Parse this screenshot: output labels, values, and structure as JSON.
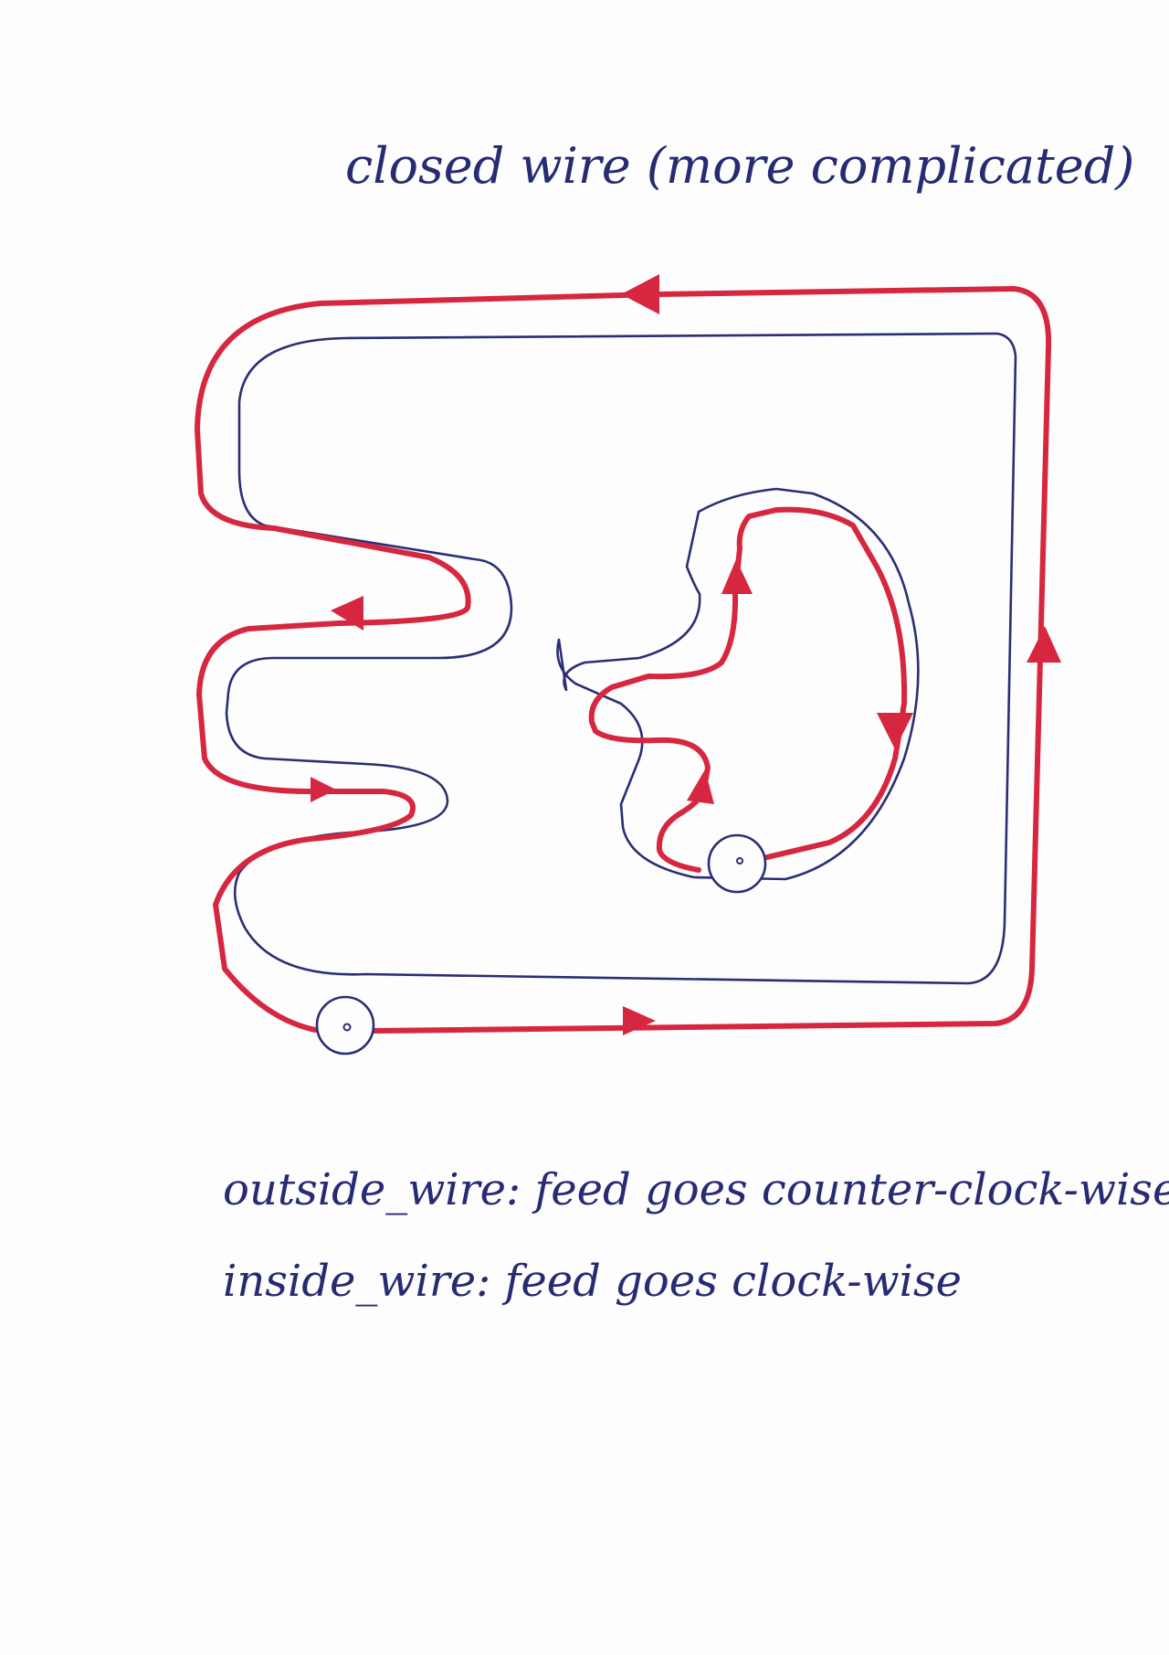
{
  "title": "closed wire (more complicated)",
  "notes": [
    "outside_wire: feed goes counter-clock-wise",
    "inside_wire: feed goes clock-wise"
  ],
  "colors": {
    "ink": "#262b72",
    "wire_outline": "#2a2e75",
    "feed_path": "#d7263f",
    "paper": "#fdfdfd"
  },
  "outside_wire": {
    "feed_direction": "counter-clock-wise",
    "arrow_count": 5
  },
  "inside_wire": {
    "feed_direction": "clock-wise",
    "arrow_count": 3
  }
}
